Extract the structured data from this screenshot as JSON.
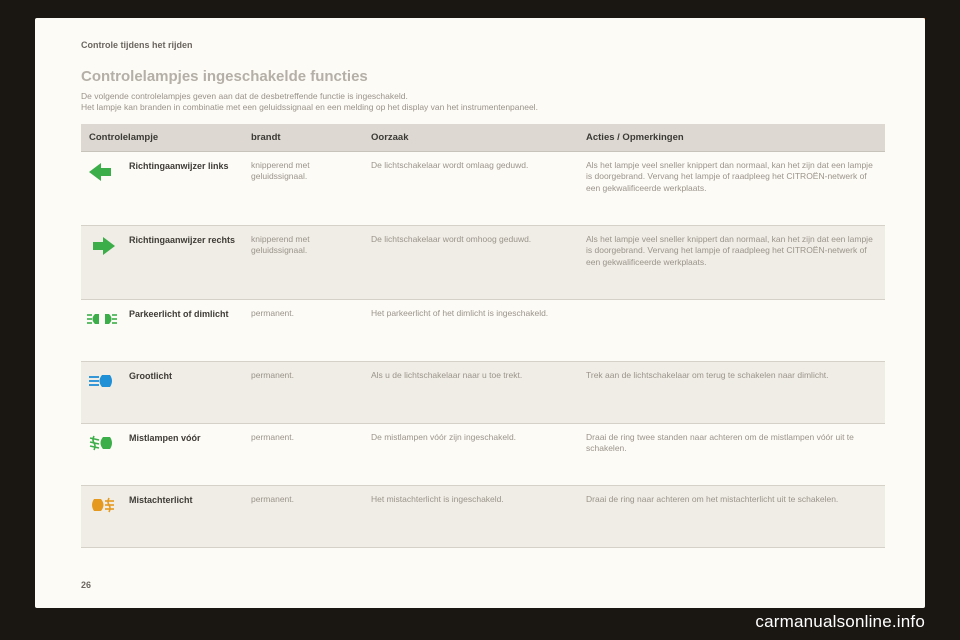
{
  "section_label": "Controle tijdens het rijden",
  "title": "Controlelampjes ingeschakelde functies",
  "intro_line1": "De volgende controlelampjes geven aan dat de desbetreffende functie is ingeschakeld.",
  "intro_line2": "Het lampje kan branden in combinatie met een geluidssignaal en een melding op het display van het instrumentenpaneel.",
  "page_number": "26",
  "watermark": "carmanualsonline.info",
  "table": {
    "headers": {
      "lamp": "Controlelampje",
      "state": "brandt",
      "cause": "Oorzaak",
      "actions": "Acties / Opmerkingen"
    },
    "rows": [
      {
        "icon": "left-arrow",
        "icon_color": "#3cae49",
        "name": "Richtingaanwijzer links",
        "state": "knipperend met geluidssignaal.",
        "cause": "De lichtschakelaar wordt omlaag geduwd.",
        "actions": "Als het lampje veel sneller knippert dan normaal, kan het zijn dat een lampje is doorgebrand. Vervang het lampje of raadpleeg het CITROËN-netwerk of een gekwalificeerde werkplaats."
      },
      {
        "icon": "right-arrow",
        "icon_color": "#3cae49",
        "name": "Richtingaanwijzer rechts",
        "state": "knipperend met geluidssignaal.",
        "cause": "De lichtschakelaar wordt omhoog geduwd.",
        "actions": "Als het lampje veel sneller knippert dan normaal, kan het zijn dat een lampje is doorgebrand. Vervang het lampje of raadpleeg het CITROËN-netwerk of een gekwalificeerde werkplaats."
      },
      {
        "icon": "sidelight",
        "icon_color": "#3cae49",
        "name": "Parkeerlicht of dimlicht",
        "state": "permanent.",
        "cause": "Het parkeerlicht of het dimlicht is ingeschakeld.",
        "actions": ""
      },
      {
        "icon": "highbeam",
        "icon_color": "#1f8fd6",
        "name": "Grootlicht",
        "state": "permanent.",
        "cause": "Als u de lichtschakelaar naar u toe trekt.",
        "actions": "Trek aan de lichtschakelaar om terug te schakelen naar dimlicht."
      },
      {
        "icon": "frontfog",
        "icon_color": "#3cae49",
        "name": "Mistlampen vóór",
        "state": "permanent.",
        "cause": "De mistlampen vóór zijn ingeschakeld.",
        "actions": "Draai de ring twee standen naar achteren om de mistlampen vóór uit te schakelen."
      },
      {
        "icon": "rearfog",
        "icon_color": "#e59a1f",
        "name": "Mistachterlicht",
        "state": "permanent.",
        "cause": "Het mistachterlicht is ingeschakeld.",
        "actions": "Draai de ring naar achteren om het mistachterlicht uit te schakelen."
      }
    ]
  },
  "colors": {
    "page_bg": "#fdfbf6",
    "outer_bg": "#1a1612",
    "header_bg": "#ddd9d2",
    "alt_row_bg": "#f0ede6",
    "border": "#d6d1c8",
    "orange": "#d8681a"
  }
}
